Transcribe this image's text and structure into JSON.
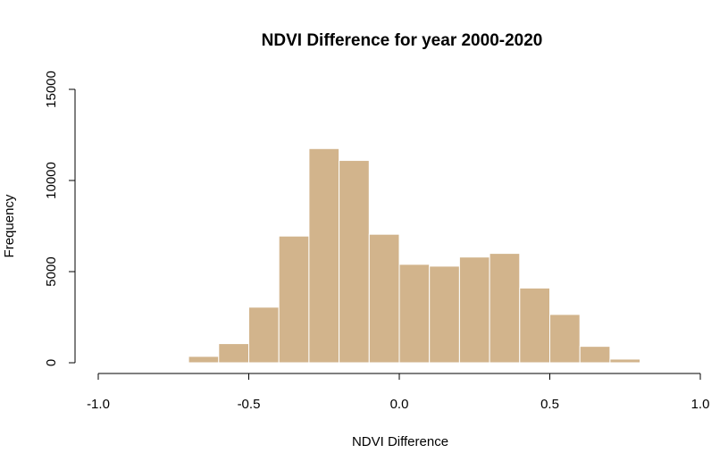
{
  "chart_data": {
    "type": "bar",
    "subtype": "histogram",
    "title": "NDVI Difference for year 2000-2020",
    "xlabel": "NDVI Difference",
    "ylabel": "Frequency",
    "xlim": [
      -1.0,
      1.0
    ],
    "ylim": [
      0,
      15000
    ],
    "x_ticks": [
      -1.0,
      -0.5,
      0.0,
      0.5,
      1.0
    ],
    "x_tick_labels": [
      "-1.0",
      "-0.5",
      "0.0",
      "0.5",
      "1.0"
    ],
    "y_ticks": [
      0,
      5000,
      10000,
      15000
    ],
    "y_tick_labels": [
      "0",
      "5000",
      "10000",
      "15000"
    ],
    "bar_color": "#D2B48C",
    "bar_border_color": "#ffffff",
    "grid": false,
    "bins": [
      {
        "x0": -0.7,
        "x1": -0.6,
        "value": 350
      },
      {
        "x0": -0.6,
        "x1": -0.5,
        "value": 1050
      },
      {
        "x0": -0.5,
        "x1": -0.4,
        "value": 3050
      },
      {
        "x0": -0.4,
        "x1": -0.3,
        "value": 6950
      },
      {
        "x0": -0.3,
        "x1": -0.2,
        "value": 11750
      },
      {
        "x0": -0.2,
        "x1": -0.1,
        "value": 11100
      },
      {
        "x0": -0.1,
        "x1": 0.0,
        "value": 7050
      },
      {
        "x0": 0.0,
        "x1": 0.1,
        "value": 5400
      },
      {
        "x0": 0.1,
        "x1": 0.2,
        "value": 5300
      },
      {
        "x0": 0.2,
        "x1": 0.3,
        "value": 5800
      },
      {
        "x0": 0.3,
        "x1": 0.4,
        "value": 6000
      },
      {
        "x0": 0.4,
        "x1": 0.5,
        "value": 4100
      },
      {
        "x0": 0.5,
        "x1": 0.6,
        "value": 2650
      },
      {
        "x0": 0.6,
        "x1": 0.7,
        "value": 900
      },
      {
        "x0": 0.7,
        "x1": 0.8,
        "value": 200
      }
    ]
  }
}
